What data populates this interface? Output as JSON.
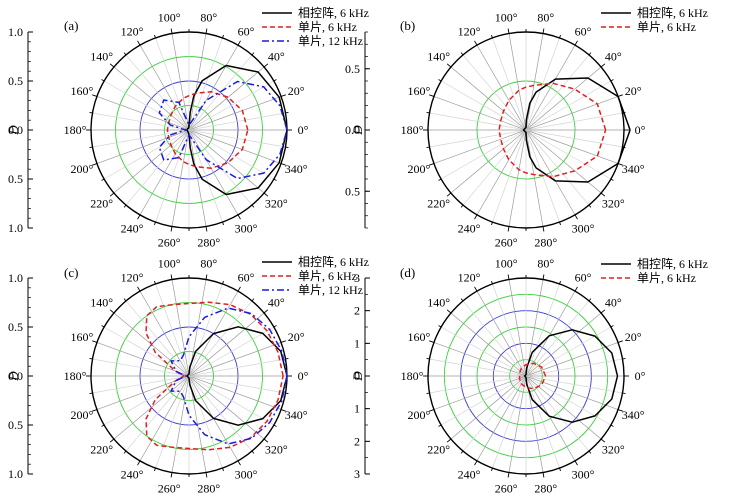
{
  "chart_data": [
    {
      "type": "polar",
      "panel_label": "(a)",
      "radial_label": "D",
      "r_max": 1.0,
      "r_ticks": [
        "0.0",
        "0.5",
        "1.0"
      ],
      "angle_ticks": [
        "0°",
        "20°",
        "40°",
        "60°",
        "80°",
        "100°",
        "120°",
        "140°",
        "160°",
        "180°",
        "200°",
        "220°",
        "240°",
        "260°",
        "280°",
        "300°",
        "320°",
        "340°"
      ],
      "series": [
        {
          "name": "相控阵, 6 kHz",
          "color": "#000000",
          "dash": "solid",
          "angles": [
            0,
            20,
            40,
            60,
            75,
            82,
            86,
            90,
            100,
            120,
            160,
            180,
            200,
            240,
            270,
            274,
            278,
            285,
            300,
            320,
            340,
            360
          ],
          "values": [
            1.0,
            0.98,
            0.92,
            0.76,
            0.52,
            0.35,
            0.18,
            0.05,
            0.02,
            0.02,
            0.02,
            0.02,
            0.02,
            0.02,
            0.05,
            0.18,
            0.35,
            0.52,
            0.76,
            0.92,
            0.98,
            1.0
          ]
        },
        {
          "name": "单片, 6 kHz",
          "color": "#e02020",
          "dash": "dash",
          "angles": [
            0,
            20,
            40,
            60,
            80,
            90,
            100,
            120,
            140,
            160,
            180,
            200,
            220,
            240,
            260,
            270,
            280,
            300,
            320,
            340,
            360
          ],
          "values": [
            0.6,
            0.58,
            0.52,
            0.45,
            0.38,
            0.35,
            0.33,
            0.28,
            0.24,
            0.22,
            0.22,
            0.22,
            0.24,
            0.28,
            0.33,
            0.35,
            0.38,
            0.45,
            0.52,
            0.58,
            0.6
          ]
        },
        {
          "name": "单片, 12 kHz",
          "color": "#1a1ae0",
          "dash": "dashdot",
          "angles": [
            0,
            15,
            30,
            45,
            60,
            75,
            90,
            110,
            130,
            150,
            165,
            175,
            180,
            185,
            195,
            210,
            230,
            250,
            270,
            285,
            300,
            315,
            330,
            345,
            360
          ],
          "values": [
            1.0,
            0.96,
            0.88,
            0.7,
            0.35,
            0.08,
            0.05,
            0.3,
            0.4,
            0.35,
            0.2,
            0.05,
            0.03,
            0.05,
            0.2,
            0.35,
            0.4,
            0.3,
            0.05,
            0.08,
            0.35,
            0.7,
            0.88,
            0.96,
            1.0
          ]
        }
      ]
    },
    {
      "type": "polar",
      "panel_label": "(b)",
      "radial_label": "D",
      "r_max": 0.8,
      "r_ticks": [
        "0.0",
        "0.5"
      ],
      "angle_ticks": [
        "0°",
        "20°",
        "40°",
        "60°",
        "80°",
        "100°",
        "120°",
        "140°",
        "160°",
        "180°",
        "200°",
        "220°",
        "240°",
        "260°",
        "280°",
        "300°",
        "320°",
        "340°"
      ],
      "series": [
        {
          "name": "相控阵, 6 kHz",
          "color": "#000000",
          "dash": "solid",
          "angles": [
            0,
            20,
            40,
            60,
            75,
            82,
            88,
            90,
            180,
            270,
            272,
            278,
            285,
            300,
            320,
            340,
            360
          ],
          "values": [
            0.85,
            0.8,
            0.66,
            0.48,
            0.32,
            0.22,
            0.08,
            0.02,
            0.02,
            0.02,
            0.08,
            0.22,
            0.32,
            0.48,
            0.66,
            0.8,
            0.85
          ]
        },
        {
          "name": "单片, 6 kHz",
          "color": "#e02020",
          "dash": "dash",
          "angles": [
            0,
            20,
            40,
            60,
            80,
            90,
            100,
            120,
            140,
            160,
            180,
            200,
            220,
            240,
            260,
            270,
            280,
            300,
            320,
            340,
            360
          ],
          "values": [
            0.65,
            0.62,
            0.52,
            0.44,
            0.37,
            0.35,
            0.33,
            0.28,
            0.24,
            0.22,
            0.22,
            0.22,
            0.24,
            0.28,
            0.33,
            0.35,
            0.37,
            0.44,
            0.52,
            0.62,
            0.65
          ]
        }
      ]
    },
    {
      "type": "polar",
      "panel_label": "(c)",
      "radial_label": "D",
      "r_max": 1.0,
      "r_ticks": [
        "0.0",
        "0.5",
        "1.0"
      ],
      "angle_ticks": [
        "0°",
        "20°",
        "40°",
        "60°",
        "80°",
        "100°",
        "120°",
        "140°",
        "160°",
        "180°",
        "200°",
        "220°",
        "240°",
        "260°",
        "280°",
        "300°",
        "320°",
        "340°"
      ],
      "series": [
        {
          "name": "相控阵, 6 kHz",
          "color": "#000000",
          "dash": "solid",
          "angles": [
            0,
            15,
            30,
            45,
            60,
            75,
            85,
            90,
            180,
            270,
            275,
            285,
            300,
            315,
            330,
            345,
            360
          ],
          "values": [
            1.0,
            0.97,
            0.87,
            0.71,
            0.5,
            0.26,
            0.09,
            0.02,
            0.02,
            0.02,
            0.09,
            0.26,
            0.5,
            0.71,
            0.87,
            0.97,
            1.0
          ]
        },
        {
          "name": "单片, 6 kHz",
          "color": "#e02020",
          "dash": "dash",
          "angles": [
            0,
            15,
            30,
            45,
            60,
            75,
            90,
            105,
            115,
            125,
            135,
            145,
            160,
            180,
            200,
            215,
            225,
            235,
            245,
            255,
            270,
            285,
            300,
            315,
            330,
            345,
            360
          ],
          "values": [
            0.96,
            0.94,
            0.92,
            0.89,
            0.84,
            0.78,
            0.74,
            0.75,
            0.78,
            0.75,
            0.62,
            0.42,
            0.15,
            0.05,
            0.15,
            0.42,
            0.62,
            0.75,
            0.78,
            0.75,
            0.74,
            0.78,
            0.84,
            0.89,
            0.92,
            0.94,
            0.96
          ]
        },
        {
          "name": "单片, 12 kHz",
          "color": "#1a1ae0",
          "dash": "dashdot",
          "angles": [
            0,
            15,
            30,
            45,
            60,
            75,
            90,
            105,
            120,
            140,
            160,
            170,
            180,
            190,
            200,
            220,
            240,
            255,
            270,
            285,
            300,
            315,
            330,
            345,
            360
          ],
          "values": [
            1.0,
            0.98,
            0.95,
            0.9,
            0.8,
            0.62,
            0.4,
            0.22,
            0.18,
            0.24,
            0.14,
            0.06,
            0.03,
            0.06,
            0.14,
            0.24,
            0.18,
            0.22,
            0.4,
            0.62,
            0.8,
            0.9,
            0.95,
            0.98,
            1.0
          ]
        }
      ]
    },
    {
      "type": "polar",
      "panel_label": "(d)",
      "radial_label": "D",
      "r_max": 3.0,
      "r_ticks": [
        "0",
        "1",
        "2",
        "3"
      ],
      "angle_ticks": [
        "0°",
        "20°",
        "40°",
        "60°",
        "80°",
        "100°",
        "120°",
        "140°",
        "160°",
        "180°",
        "200°",
        "220°",
        "240°",
        "260°",
        "280°",
        "300°",
        "320°",
        "340°"
      ],
      "series": [
        {
          "name": "相控阵, 6 kHz",
          "color": "#000000",
          "dash": "solid",
          "angles": [
            0,
            15,
            30,
            45,
            60,
            75,
            85,
            90,
            180,
            270,
            275,
            285,
            300,
            315,
            330,
            345,
            360
          ],
          "values": [
            2.8,
            2.72,
            2.44,
            2.0,
            1.42,
            0.75,
            0.25,
            0.04,
            0.04,
            0.04,
            0.25,
            0.75,
            1.42,
            2.0,
            2.44,
            2.72,
            2.8
          ]
        },
        {
          "name": "单片, 6 kHz",
          "color": "#e02020",
          "dash": "dash",
          "angles": [
            0,
            30,
            60,
            90,
            120,
            150,
            180,
            210,
            240,
            270,
            300,
            330,
            360
          ],
          "values": [
            0.6,
            0.55,
            0.45,
            0.35,
            0.28,
            0.22,
            0.2,
            0.22,
            0.28,
            0.35,
            0.45,
            0.55,
            0.6
          ]
        }
      ]
    }
  ]
}
